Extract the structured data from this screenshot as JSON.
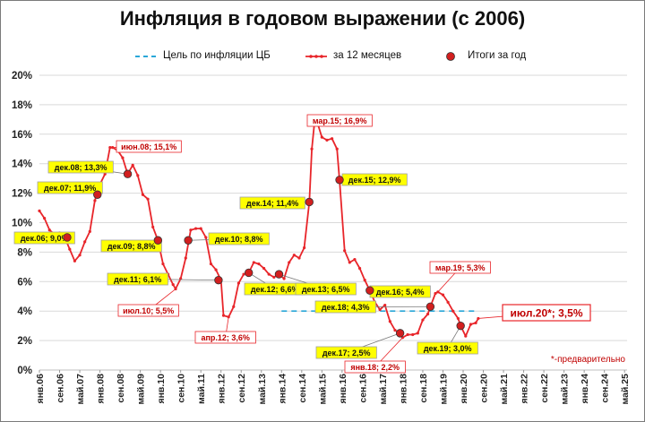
{
  "chart_data": {
    "type": "line",
    "title": "Инфляция в годовом выражении (с 2006)",
    "ylim": [
      0,
      20
    ],
    "yticks": [
      0,
      2,
      4,
      6,
      8,
      10,
      12,
      14,
      16,
      18,
      20
    ],
    "ytick_suffix": "%",
    "grid": true,
    "legend_position": "top",
    "xlim": [
      "2006-01",
      "2025-06"
    ],
    "xtick_labels": [
      {
        "label": "янв.06",
        "x": "2006-01"
      },
      {
        "label": "сен.06",
        "x": "2006-09"
      },
      {
        "label": "май.07",
        "x": "2007-05"
      },
      {
        "label": "янв.08",
        "x": "2008-01"
      },
      {
        "label": "сен.08",
        "x": "2008-09"
      },
      {
        "label": "май.09",
        "x": "2009-05"
      },
      {
        "label": "янв.10",
        "x": "2010-01"
      },
      {
        "label": "сен.10",
        "x": "2010-09"
      },
      {
        "label": "май.11",
        "x": "2011-05"
      },
      {
        "label": "янв.12",
        "x": "2012-01"
      },
      {
        "label": "сен.12",
        "x": "2012-09"
      },
      {
        "label": "май.13",
        "x": "2013-05"
      },
      {
        "label": "янв.14",
        "x": "2014-01"
      },
      {
        "label": "сен.14",
        "x": "2014-09"
      },
      {
        "label": "май.15",
        "x": "2015-05"
      },
      {
        "label": "янв.16",
        "x": "2016-01"
      },
      {
        "label": "сен.16",
        "x": "2016-09"
      },
      {
        "label": "май.17",
        "x": "2017-05"
      },
      {
        "label": "янв.18",
        "x": "2018-01"
      },
      {
        "label": "сен.18",
        "x": "2018-09"
      },
      {
        "label": "май.19",
        "x": "2019-05"
      },
      {
        "label": "янв.20",
        "x": "2020-01"
      },
      {
        "label": "сен.20",
        "x": "2020-09"
      },
      {
        "label": "май.21",
        "x": "2021-05"
      },
      {
        "label": "янв.22",
        "x": "2022-01"
      },
      {
        "label": "сен.22",
        "x": "2022-09"
      },
      {
        "label": "май.23",
        "x": "2023-05"
      },
      {
        "label": "янв.24",
        "x": "2024-01"
      },
      {
        "label": "сен.24",
        "x": "2024-09"
      },
      {
        "label": "май.25",
        "x": "2025-05"
      }
    ],
    "series": [
      {
        "name": "Цель по инфляции ЦБ",
        "style": "dashed",
        "color": "#2aa7d8",
        "x": [
          "2014-01",
          "2020-06"
        ],
        "y": [
          4.0,
          4.0
        ]
      },
      {
        "name": "за 12 месяцев",
        "style": "line-markers",
        "color": "#e8252a",
        "x": [
          "2006-01",
          "2006-03",
          "2006-05",
          "2006-07",
          "2006-09",
          "2006-11",
          "2007-01",
          "2007-03",
          "2007-05",
          "2007-07",
          "2007-09",
          "2007-11",
          "2008-01",
          "2008-03",
          "2008-05",
          "2008-06",
          "2008-08",
          "2008-10",
          "2008-12",
          "2009-02",
          "2009-04",
          "2009-06",
          "2009-08",
          "2009-10",
          "2009-12",
          "2010-02",
          "2010-04",
          "2010-06",
          "2010-07",
          "2010-09",
          "2010-11",
          "2011-01",
          "2011-03",
          "2011-05",
          "2011-07",
          "2011-09",
          "2011-11",
          "2012-01",
          "2012-02",
          "2012-04",
          "2012-06",
          "2012-08",
          "2012-10",
          "2012-12",
          "2013-02",
          "2013-04",
          "2013-06",
          "2013-08",
          "2013-10",
          "2013-12",
          "2014-02",
          "2014-04",
          "2014-06",
          "2014-08",
          "2014-10",
          "2014-12",
          "2015-01",
          "2015-02",
          "2015-03",
          "2015-05",
          "2015-07",
          "2015-09",
          "2015-11",
          "2015-12",
          "2016-02",
          "2016-04",
          "2016-06",
          "2016-08",
          "2016-10",
          "2016-12",
          "2017-02",
          "2017-04",
          "2017-06",
          "2017-08",
          "2017-10",
          "2017-12",
          "2018-01",
          "2018-03",
          "2018-05",
          "2018-07",
          "2018-09",
          "2018-11",
          "2018-12",
          "2019-02",
          "2019-03",
          "2019-05",
          "2019-07",
          "2019-09",
          "2019-11",
          "2019-12",
          "2020-02",
          "2020-04",
          "2020-06",
          "2020-07"
        ],
        "y": [
          10.8,
          10.3,
          9.5,
          9.2,
          9.3,
          9.0,
          8.2,
          7.4,
          7.8,
          8.7,
          9.4,
          11.5,
          12.6,
          13.3,
          15.1,
          15.1,
          14.9,
          14.4,
          13.3,
          13.9,
          13.2,
          11.9,
          11.6,
          9.7,
          8.8,
          7.2,
          6.5,
          5.8,
          5.5,
          6.2,
          7.6,
          9.5,
          9.6,
          9.6,
          9.0,
          7.2,
          6.8,
          6.1,
          3.7,
          3.6,
          4.3,
          5.9,
          6.5,
          6.6,
          7.3,
          7.2,
          6.9,
          6.5,
          6.3,
          6.5,
          6.2,
          7.3,
          7.8,
          7.6,
          8.3,
          11.4,
          15.0,
          16.7,
          16.9,
          15.8,
          15.6,
          15.7,
          15.0,
          12.9,
          8.1,
          7.3,
          7.5,
          6.9,
          6.1,
          5.4,
          4.6,
          4.1,
          4.4,
          3.3,
          2.7,
          2.5,
          2.2,
          2.4,
          2.4,
          2.5,
          3.4,
          3.8,
          4.3,
          5.2,
          5.3,
          5.1,
          4.6,
          4.0,
          3.5,
          3.0,
          2.3,
          3.1,
          3.2,
          3.5
        ]
      },
      {
        "name": "Итоги за год",
        "style": "markers",
        "color": "#c00000",
        "points": [
          {
            "x": "2006-12",
            "y": 9.0
          },
          {
            "x": "2007-12",
            "y": 11.9
          },
          {
            "x": "2008-12",
            "y": 13.3
          },
          {
            "x": "2009-12",
            "y": 8.8
          },
          {
            "x": "2010-12",
            "y": 8.8
          },
          {
            "x": "2011-12",
            "y": 6.1
          },
          {
            "x": "2012-12",
            "y": 6.6
          },
          {
            "x": "2013-12",
            "y": 6.5
          },
          {
            "x": "2014-12",
            "y": 11.4
          },
          {
            "x": "2015-12",
            "y": 12.9
          },
          {
            "x": "2016-12",
            "y": 5.4
          },
          {
            "x": "2017-12",
            "y": 2.5
          },
          {
            "x": "2018-12",
            "y": 4.3
          },
          {
            "x": "2019-12",
            "y": 3.0
          }
        ]
      }
    ],
    "annotations": [
      {
        "text": "дек.06; 9,0%",
        "style": "yellow",
        "anchor": {
          "x": "2006-12",
          "y": 9.0
        }
      },
      {
        "text": "дек.07; 11,9%",
        "style": "yellow",
        "anchor": {
          "x": "2007-12",
          "y": 11.9
        }
      },
      {
        "text": "дек.08; 13,3%",
        "style": "yellow",
        "anchor": {
          "x": "2008-12",
          "y": 13.3
        }
      },
      {
        "text": "июн.08; 15,1%",
        "style": "red",
        "anchor": {
          "x": "2008-06",
          "y": 15.1
        }
      },
      {
        "text": "дек.09; 8,8%",
        "style": "yellow",
        "anchor": {
          "x": "2009-12",
          "y": 8.8
        }
      },
      {
        "text": "дек.10; 8,8%",
        "style": "yellow",
        "anchor": {
          "x": "2010-12",
          "y": 8.8
        }
      },
      {
        "text": "дек.11; 6,1%",
        "style": "yellow",
        "anchor": {
          "x": "2011-12",
          "y": 6.1
        }
      },
      {
        "text": "июл.10; 5,5%",
        "style": "red",
        "anchor": {
          "x": "2010-07",
          "y": 5.5
        }
      },
      {
        "text": "апр.12; 3,6%",
        "style": "red",
        "anchor": {
          "x": "2012-04",
          "y": 3.6
        }
      },
      {
        "text": "дек.12; 6,6%",
        "style": "yellow",
        "anchor": {
          "x": "2012-12",
          "y": 6.6
        }
      },
      {
        "text": "дек.13; 6,5%",
        "style": "yellow",
        "anchor": {
          "x": "2013-12",
          "y": 6.5
        }
      },
      {
        "text": "дек.14; 11,4%",
        "style": "yellow",
        "anchor": {
          "x": "2014-12",
          "y": 11.4
        }
      },
      {
        "text": "мар.15; 16,9%",
        "style": "red",
        "anchor": {
          "x": "2015-03",
          "y": 16.9
        }
      },
      {
        "text": "дек.15; 12,9%",
        "style": "yellow",
        "anchor": {
          "x": "2015-12",
          "y": 12.9
        }
      },
      {
        "text": "дек.16; 5,4%",
        "style": "yellow",
        "anchor": {
          "x": "2016-12",
          "y": 5.4
        }
      },
      {
        "text": "дек.18; 4,3%",
        "style": "yellow",
        "anchor": {
          "x": "2018-12",
          "y": 4.3
        }
      },
      {
        "text": "дек.17; 2,5%",
        "style": "yellow",
        "anchor": {
          "x": "2017-12",
          "y": 2.5
        }
      },
      {
        "text": "янв.18; 2,2%",
        "style": "red",
        "anchor": {
          "x": "2018-01",
          "y": 2.2
        }
      },
      {
        "text": "мар.19; 5,3%",
        "style": "red",
        "anchor": {
          "x": "2019-03",
          "y": 5.3
        }
      },
      {
        "text": "дек.19; 3,0%",
        "style": "yellow",
        "anchor": {
          "x": "2019-12",
          "y": 3.0
        }
      },
      {
        "text": "июл.20*; 3,5%",
        "style": "red-large",
        "anchor": {
          "x": "2020-07",
          "y": 3.5
        }
      }
    ],
    "footnote": "*-предварительно"
  }
}
